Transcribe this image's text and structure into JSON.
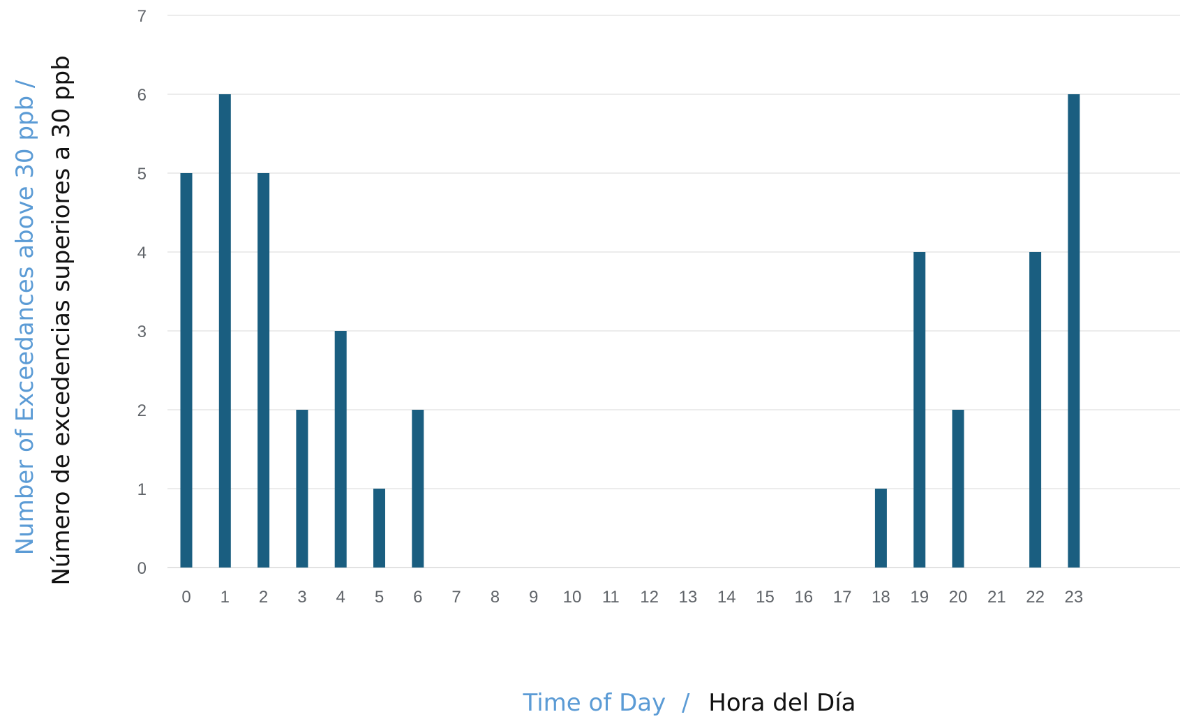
{
  "colors": {
    "bar": "#1a5e80",
    "grid": "#d9d9d9",
    "tick_text": "#5f6368",
    "title_en": "#5b9bd5",
    "title_es": "#111111"
  },
  "axis_titles": {
    "x_en": "Time of Day",
    "x_sep": "/",
    "x_es": "Hora del Día",
    "y_en": "Number of Exceedances above 30 ppb /",
    "y_es": "Número de excedencias superiores a 30 ppb"
  },
  "chart_data": {
    "type": "bar",
    "categories": [
      "0",
      "1",
      "2",
      "3",
      "4",
      "5",
      "6",
      "7",
      "8",
      "9",
      "10",
      "11",
      "12",
      "13",
      "14",
      "15",
      "16",
      "17",
      "18",
      "19",
      "20",
      "21",
      "22",
      "23"
    ],
    "values": [
      5,
      6,
      5,
      2,
      3,
      1,
      2,
      0,
      0,
      0,
      0,
      0,
      0,
      0,
      0,
      0,
      0,
      0,
      1,
      4,
      2,
      0,
      4,
      6
    ],
    "xlabel": "Time of Day / Hora del Día",
    "ylabel": "Number of Exceedances above 30 ppb / Número de excedencias superiores a 30 ppb",
    "ylim": [
      0,
      7
    ],
    "yticks": [
      0,
      1,
      2,
      3,
      4,
      5,
      6,
      7
    ],
    "grid": true,
    "legend": "none"
  }
}
